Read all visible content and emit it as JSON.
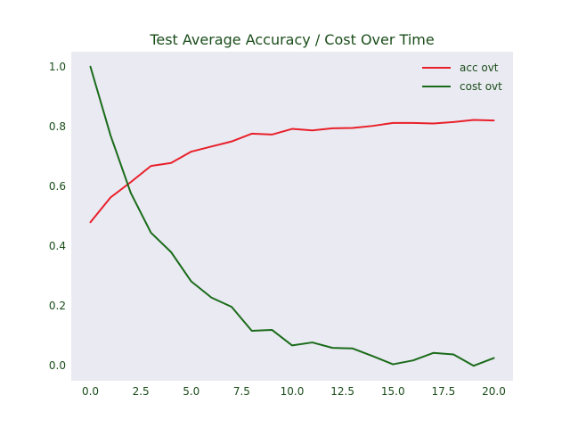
{
  "colors": {
    "plot_background": "#eaeaf2",
    "text": "#1a4d1a",
    "acc_line": "#e8202a",
    "cost_line": "#1a6b1a"
  },
  "chart_data": {
    "type": "line",
    "title": "Test Average Accuracy / Cost Over Time",
    "xlabel": "",
    "ylabel": "",
    "grid": false,
    "legend_position": "top-right",
    "xlim": [
      -0.95,
      20.95
    ],
    "ylim": [
      -0.05,
      1.05
    ],
    "x_ticks": [
      0.0,
      2.5,
      5.0,
      7.5,
      10.0,
      12.5,
      15.0,
      17.5,
      20.0
    ],
    "x_tick_labels": [
      "0.0",
      "2.5",
      "5.0",
      "7.5",
      "10.0",
      "12.5",
      "15.0",
      "17.5",
      "20.0"
    ],
    "y_ticks": [
      0.0,
      0.2,
      0.4,
      0.6,
      0.8,
      1.0
    ],
    "y_tick_labels": [
      "0.0",
      "0.2",
      "0.4",
      "0.6",
      "0.8",
      "1.0"
    ],
    "x": [
      0,
      1,
      2,
      3,
      4,
      5,
      6,
      7,
      8,
      9,
      10,
      11,
      12,
      13,
      14,
      15,
      16,
      17,
      18,
      19,
      20
    ],
    "series": [
      {
        "name": "acc ovt",
        "color_key": "acc_line",
        "values": [
          0.48,
          0.563,
          0.614,
          0.668,
          0.678,
          0.716,
          0.733,
          0.75,
          0.776,
          0.773,
          0.792,
          0.787,
          0.794,
          0.795,
          0.802,
          0.812,
          0.812,
          0.81,
          0.815,
          0.822,
          0.82
        ]
      },
      {
        "name": "cost ovt",
        "color_key": "cost_line",
        "values": [
          1.0,
          0.77,
          0.578,
          0.445,
          0.38,
          0.282,
          0.228,
          0.197,
          0.117,
          0.12,
          0.068,
          0.078,
          0.06,
          0.058,
          0.032,
          0.005,
          0.018,
          0.043,
          0.038,
          0.0,
          0.026
        ]
      }
    ]
  }
}
